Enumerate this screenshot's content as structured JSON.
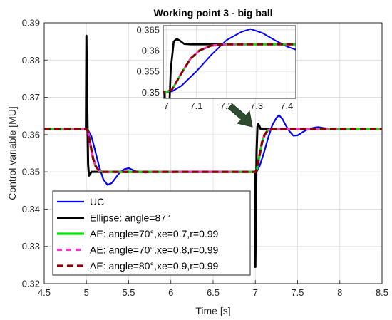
{
  "chart_data": [
    {
      "type": "line",
      "title": "Working point 3 - big ball",
      "xlabel": "Time [s]",
      "ylabel": "Control variable [MU]",
      "xlim": [
        4.5,
        8.5
      ],
      "ylim": [
        0.32,
        0.39
      ],
      "xticks": [
        4.5,
        5,
        5.5,
        6,
        6.5,
        7,
        7.5,
        8,
        8.5
      ],
      "yticks": [
        0.32,
        0.33,
        0.34,
        0.35,
        0.36,
        0.37,
        0.38,
        0.39
      ],
      "grid": true,
      "legend_position": "bottom-left",
      "series": [
        {
          "name": "UC",
          "color": "#0000ff",
          "style": "solid",
          "x": [
            4.5,
            5.0,
            5.02,
            5.06,
            5.1,
            5.15,
            5.2,
            5.25,
            5.3,
            5.35,
            5.4,
            5.45,
            5.5,
            5.55,
            5.6,
            5.7,
            5.8,
            6.0,
            7.0,
            7.02,
            7.05,
            7.1,
            7.15,
            7.2,
            7.25,
            7.28,
            7.32,
            7.36,
            7.4,
            7.45,
            7.5,
            7.6,
            7.7,
            7.75,
            7.8,
            7.9,
            8.0,
            8.5
          ],
          "y": [
            0.3615,
            0.3615,
            0.3612,
            0.3595,
            0.356,
            0.3515,
            0.348,
            0.3465,
            0.347,
            0.3485,
            0.35,
            0.3507,
            0.351,
            0.3505,
            0.35,
            0.3498,
            0.35,
            0.35,
            0.35,
            0.3502,
            0.3515,
            0.355,
            0.359,
            0.3625,
            0.3645,
            0.3652,
            0.3642,
            0.3625,
            0.361,
            0.3597,
            0.3598,
            0.3612,
            0.3619,
            0.362,
            0.3618,
            0.3615,
            0.3615,
            0.3615
          ]
        },
        {
          "name": "Ellipse: angle=87°",
          "color": "#000000",
          "style": "solid",
          "x": [
            4.5,
            4.995,
            5.0,
            5.005,
            5.02,
            5.03,
            5.045,
            5.06,
            5.08,
            5.1,
            6.0,
            6.995,
            7.0,
            7.005,
            7.015,
            7.025,
            7.035,
            7.045,
            7.06,
            7.08,
            7.1,
            8.5
          ],
          "y": [
            0.3615,
            0.3615,
            0.3865,
            0.375,
            0.352,
            0.349,
            0.3495,
            0.35,
            0.35,
            0.35,
            0.35,
            0.35,
            0.3245,
            0.336,
            0.3555,
            0.3622,
            0.3628,
            0.3624,
            0.3616,
            0.3615,
            0.3615,
            0.3615
          ]
        },
        {
          "name": "AE: angle=70°,xe=0.7,r=0.99",
          "color": "#00e600",
          "style": "solid",
          "x": [
            4.5,
            5.0,
            5.02,
            5.05,
            5.08,
            5.11,
            5.15,
            5.2,
            5.25,
            5.3,
            6.0,
            7.0,
            7.02,
            7.05,
            7.08,
            7.11,
            7.15,
            7.2,
            7.25,
            7.3,
            8.5
          ],
          "y": [
            0.3615,
            0.3615,
            0.3608,
            0.357,
            0.3535,
            0.3515,
            0.3503,
            0.35,
            0.35,
            0.35,
            0.35,
            0.35,
            0.3507,
            0.3545,
            0.358,
            0.36,
            0.3612,
            0.3615,
            0.3615,
            0.3615,
            0.3615
          ]
        },
        {
          "name": "AE: angle=70°,xe=0.8,r=0.99",
          "color": "#ff33cc",
          "style": "dashed",
          "x": [
            4.5,
            5.0,
            5.02,
            5.05,
            5.08,
            5.11,
            5.15,
            5.2,
            5.25,
            5.3,
            6.0,
            7.0,
            7.02,
            7.05,
            7.08,
            7.11,
            7.15,
            7.2,
            7.25,
            7.3,
            8.5
          ],
          "y": [
            0.3615,
            0.3615,
            0.3608,
            0.357,
            0.3535,
            0.3515,
            0.3503,
            0.35,
            0.35,
            0.35,
            0.35,
            0.35,
            0.3507,
            0.3545,
            0.358,
            0.36,
            0.3612,
            0.3615,
            0.3615,
            0.3615,
            0.3615
          ]
        },
        {
          "name": "AE: angle=80°,xe=0.9,r=0.99",
          "color": "#8b0000",
          "style": "dashed",
          "x": [
            4.5,
            5.0,
            5.02,
            5.05,
            5.08,
            5.11,
            5.15,
            5.2,
            5.25,
            5.3,
            6.0,
            7.0,
            7.02,
            7.05,
            7.08,
            7.11,
            7.15,
            7.2,
            7.25,
            7.3,
            8.5
          ],
          "y": [
            0.3615,
            0.3615,
            0.3608,
            0.357,
            0.3535,
            0.3515,
            0.3503,
            0.35,
            0.35,
            0.35,
            0.35,
            0.35,
            0.3507,
            0.3545,
            0.358,
            0.36,
            0.3612,
            0.3615,
            0.3615,
            0.3615,
            0.3615
          ]
        }
      ]
    },
    {
      "type": "line",
      "title": "",
      "xlim": [
        6.99,
        7.43
      ],
      "ylim": [
        0.3485,
        0.366
      ],
      "xticks": [
        7,
        7.1,
        7.2,
        7.3,
        7.4
      ],
      "yticks": [
        0.35,
        0.355,
        0.36,
        0.365
      ],
      "grid": true,
      "inset_of": "main"
    }
  ]
}
